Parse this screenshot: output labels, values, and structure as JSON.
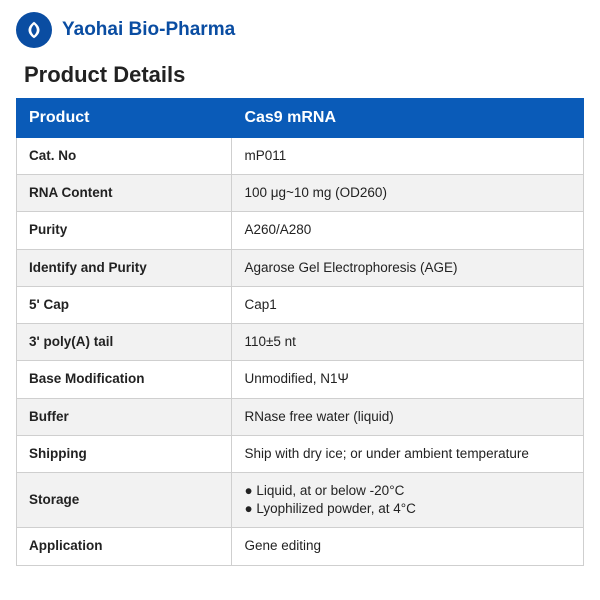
{
  "company_name": "Yaohai Bio-Pharma",
  "section_title": "Product Details",
  "colors": {
    "brand_blue": "#0a5bb8",
    "logo_blue": "#0a4da2",
    "border_gray": "#cfcfcf",
    "row_alt_bg": "#f2f2f2",
    "text": "#222222"
  },
  "table": {
    "header_left": "Product",
    "header_right": "Cas9 mRNA",
    "rows": [
      {
        "label": "Cat. No",
        "value": "mP011"
      },
      {
        "label": "RNA Content",
        "value": "100 μg~10 mg (OD260)"
      },
      {
        "label": "Purity",
        "value": "A260/A280"
      },
      {
        "label": "Identify and Purity",
        "value": "Agarose Gel Electrophoresis (AGE)"
      },
      {
        "label": "5' Cap",
        "value": "Cap1"
      },
      {
        "label": "3' poly(A) tail",
        "value": "110±5 nt"
      },
      {
        "label": "Base Modification",
        "value": "Unmodified, N1Ψ"
      },
      {
        "label": "Buffer",
        "value": "RNase free water (liquid)"
      },
      {
        "label": "Shipping",
        "value": "Ship with dry ice; or under ambient temperature"
      },
      {
        "label": "Storage",
        "bullets": [
          "Liquid, at or below -20°C",
          "Lyophilized powder, at 4°C"
        ]
      },
      {
        "label": "Application",
        "value": "Gene editing"
      }
    ]
  }
}
